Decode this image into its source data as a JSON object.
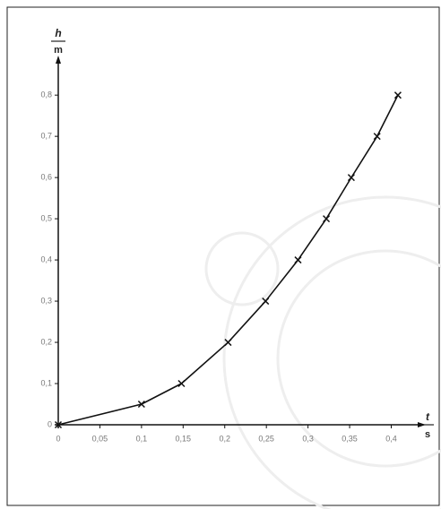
{
  "chart_data": {
    "type": "scatter-line",
    "y_symbol": "h",
    "y_unit": "m",
    "x_symbol": "t",
    "x_unit": "s",
    "x": [
      0,
      0.1,
      0.148,
      0.204,
      0.249,
      0.288,
      0.322,
      0.352,
      0.383,
      0.408
    ],
    "series": [
      {
        "name": "h",
        "color": "#111111",
        "values": [
          0,
          0.05,
          0.1,
          0.2,
          0.3,
          0.4,
          0.5,
          0.6,
          0.7,
          0.8
        ]
      }
    ],
    "xlim": [
      0,
      0.435
    ],
    "ylim": [
      0,
      0.883
    ],
    "xticks": [
      0,
      {
        "value": 0.05,
        "label": "0,05"
      },
      {
        "value": 0.1,
        "label": "0,1"
      },
      {
        "value": 0.15,
        "label": "0,15"
      },
      {
        "value": 0.2,
        "label": "0,2"
      },
      {
        "value": 0.25,
        "label": "0,25"
      },
      {
        "value": 0.3,
        "label": "0,3"
      },
      {
        "value": 0.35,
        "label": "0,35"
      },
      {
        "value": 0.4,
        "label": "0,4"
      }
    ],
    "yticks": [
      0,
      {
        "value": 0.1,
        "label": "0,1"
      },
      {
        "value": 0.2,
        "label": "0,2"
      },
      {
        "value": 0.3,
        "label": "0,3"
      },
      {
        "value": 0.4,
        "label": "0,4"
      },
      {
        "value": 0.5,
        "label": "0,5"
      },
      {
        "value": 0.6,
        "label": "0,6"
      },
      {
        "value": 0.7,
        "label": "0,7"
      },
      {
        "value": 0.8,
        "label": "0,8"
      }
    ],
    "grid": false
  }
}
